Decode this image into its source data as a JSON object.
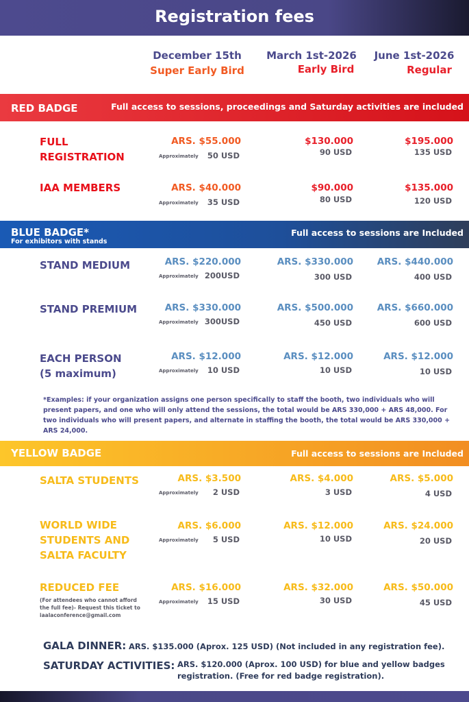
{
  "title": "Registration fees",
  "columns": [
    {
      "date": "December 15th",
      "phase": "Super Early Bird",
      "color": "#f15a22"
    },
    {
      "date": "March 1st-2026",
      "phase": "Early Bird",
      "color": "#e8202a"
    },
    {
      "date": "June 1st-2026",
      "phase": "Regular",
      "color": "#e8202a"
    }
  ],
  "approx_label": "Approximately",
  "red": {
    "title": "RED BADGE",
    "note": "Full access to sessions, proceedings and Saturday activities are included",
    "label_color": "#e8101a",
    "rows": [
      {
        "label": [
          "FULL",
          "REGISTRATION"
        ],
        "prices": [
          "ARS.  $55.000",
          "$130.000",
          "$195.000"
        ],
        "usd": [
          "50 USD",
          "90 USD",
          "135 USD"
        ]
      },
      {
        "label": [
          "IAA MEMBERS"
        ],
        "prices": [
          "ARS.  $40.000",
          "$90.000",
          "$135.000"
        ],
        "usd": [
          "35 USD",
          "80 USD",
          "120 USD"
        ]
      }
    ]
  },
  "blue": {
    "title": "BLUE  BADGE*",
    "subtitle": "For exhibitors with stands",
    "note": "Full access to sessions are Included",
    "label_color": "#4b4a8c",
    "price_color": "#5a8ec0",
    "rows": [
      {
        "label": [
          "STAND MEDIUM"
        ],
        "prices": [
          "ARS.  $220.000",
          "ARS.  $330.000",
          "ARS.  $440.000"
        ],
        "usd": [
          "200USD",
          "300 USD",
          "400 USD"
        ]
      },
      {
        "label": [
          "STAND PREMIUM"
        ],
        "prices": [
          "ARS.  $330.000",
          "ARS.  $500.000",
          "ARS.  $660.000"
        ],
        "usd": [
          "300USD",
          "450 USD",
          "600 USD"
        ]
      },
      {
        "label": [
          "EACH PERSON",
          "(5 maximum)"
        ],
        "prices": [
          "ARS.  $12.000",
          "ARS.  $12.000",
          "ARS.  $12.000"
        ],
        "usd": [
          "10 USD",
          "10 USD",
          "10 USD"
        ]
      }
    ],
    "footnote": "*Examples: if your organization assigns one person specifically to staff the booth, two individuals who will present papers, and one who will only attend the sessions, the total would be ARS 330,000 + ARS 48,000. For two individuals who will present papers, and alternate in staffing the booth, the total would be ARS 330,000 + ARS 24,000."
  },
  "yellow": {
    "title": "YELLOW  BADGE",
    "note": "Full access to sessions are Included",
    "label_color": "#f7bb1a",
    "rows": [
      {
        "label": [
          "SALTA STUDENTS"
        ],
        "prices": [
          "ARS.  $3.500",
          "ARS.  $4.000",
          "ARS.  $5.000"
        ],
        "usd": [
          "2 USD",
          "3 USD",
          "4 USD"
        ]
      },
      {
        "label": [
          "WORLD WIDE",
          "STUDENTS AND",
          "SALTA FACULTY"
        ],
        "prices": [
          "ARS.  $6.000",
          "ARS.  $12.000",
          "ARS.  $24.000"
        ],
        "usd": [
          "5 USD",
          "10 USD",
          "20 USD"
        ]
      },
      {
        "label": [
          "REDUCED FEE"
        ],
        "sublabel": [
          "(For  attendees who cannot afford",
          "the full fee)- Request this ticket  to",
          "iaalaconference@gmail.com"
        ],
        "prices": [
          "ARS.  $16.000",
          "ARS.  $32.000",
          "ARS.  $50.000"
        ],
        "usd": [
          "15 USD",
          "30 USD",
          "45 USD"
        ]
      }
    ]
  },
  "gala": {
    "label": "GALA DINNER:",
    "text": "ARS. $135.000 (Aprox. 125 USD) (Not included in any registration fee)."
  },
  "saturday": {
    "label": "SATURDAY ACTIVITIES:",
    "text": [
      "ARS. $120.000 (Aprox. 100  USD) for blue and yellow badges",
      "registration. (Free for red badge registration)."
    ]
  }
}
